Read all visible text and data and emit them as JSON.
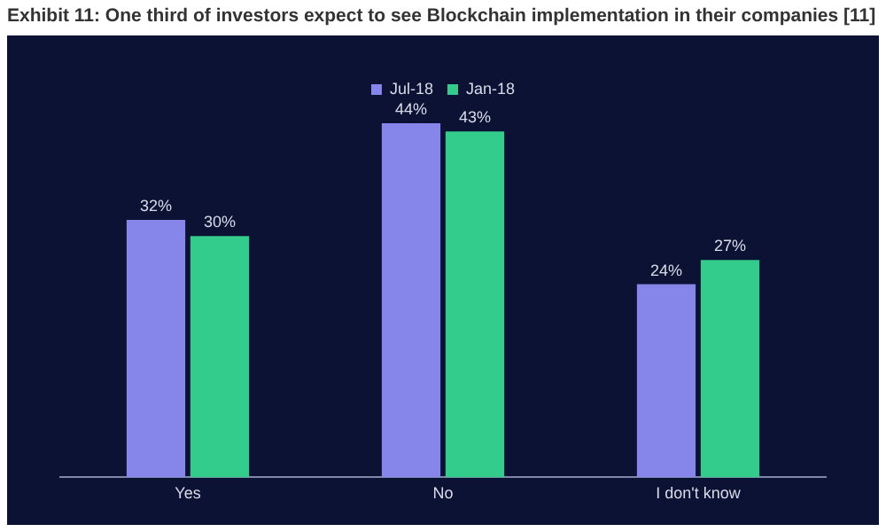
{
  "chart_data": {
    "type": "bar",
    "title": "Exhibit 11: One third of investors expect to see Blockchain implementation in their companies [11]",
    "categories": [
      "Yes",
      "No",
      "I don't know"
    ],
    "series": [
      {
        "name": "Jul-18",
        "color": "#8585ea",
        "values": [
          32,
          44,
          24
        ],
        "value_labels": [
          "32%",
          "44%",
          "24%"
        ]
      },
      {
        "name": "Jan-18",
        "color": "#33cc8c",
        "values": [
          30,
          43,
          27
        ],
        "value_labels": [
          "30%",
          "43%",
          "27%"
        ]
      }
    ],
    "legend": "top",
    "grid": false
  }
}
